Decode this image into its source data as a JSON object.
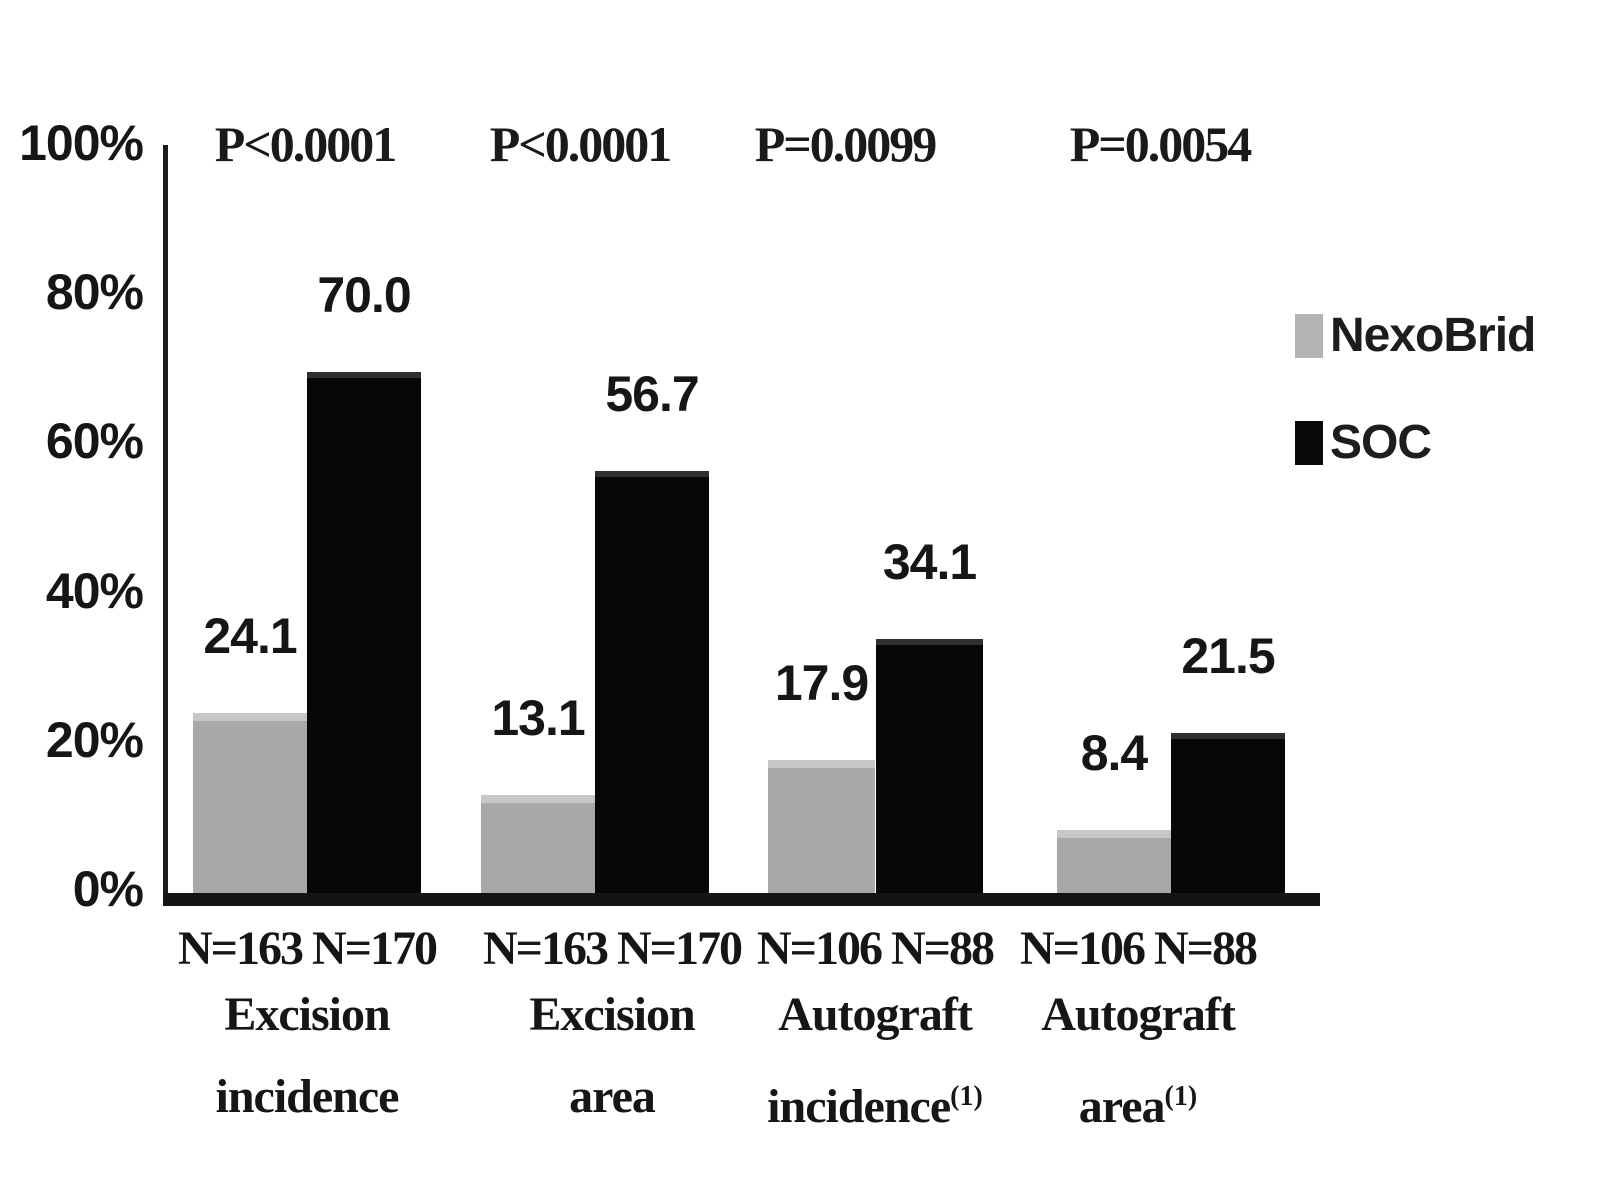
{
  "chart_data": {
    "type": "bar",
    "title": "",
    "unit": "%",
    "categories": [
      "Excision incidence",
      "Excision area",
      "Autograft incidence(1)",
      "Autograft area(1)"
    ],
    "series": [
      {
        "name": "NexoBrid",
        "color": "#a8a8a8",
        "values": [
          24.1,
          13.1,
          17.9,
          8.4
        ]
      },
      {
        "name": "SOC",
        "color": "#070707",
        "values": [
          70.0,
          56.7,
          34.1,
          21.5
        ]
      }
    ],
    "value_labels": [
      [
        "24.1",
        "70.0"
      ],
      [
        "13.1",
        "56.7"
      ],
      [
        "17.9",
        "34.1"
      ],
      [
        "8.4",
        "21.5"
      ]
    ],
    "p_values": [
      "P<0.0001",
      "P<0.0001",
      "P=0.0099",
      "P=0.0054"
    ],
    "n_labels": [
      [
        "N=163",
        "N=170"
      ],
      [
        "N=163",
        "N=170"
      ],
      [
        "N=106",
        "N=88"
      ],
      [
        "N=106",
        "N=88"
      ]
    ],
    "category_lines": [
      [
        "Excision",
        "incidence"
      ],
      [
        "Excision",
        "area"
      ],
      [
        "Autograft",
        "incidence"
      ],
      [
        "Autograft",
        "area"
      ]
    ],
    "category_superscripts": [
      "",
      "",
      "(1)",
      "(1)"
    ],
    "y_ticks": [
      "100%",
      "80%",
      "60%",
      "40%",
      "20%",
      "0%"
    ],
    "ylim": [
      0,
      100
    ],
    "grid": false,
    "legend": {
      "position": "right",
      "swatch_colors": {
        "NexoBrid": "#b3b3b3",
        "SOC": "#0a0a0a"
      }
    }
  }
}
